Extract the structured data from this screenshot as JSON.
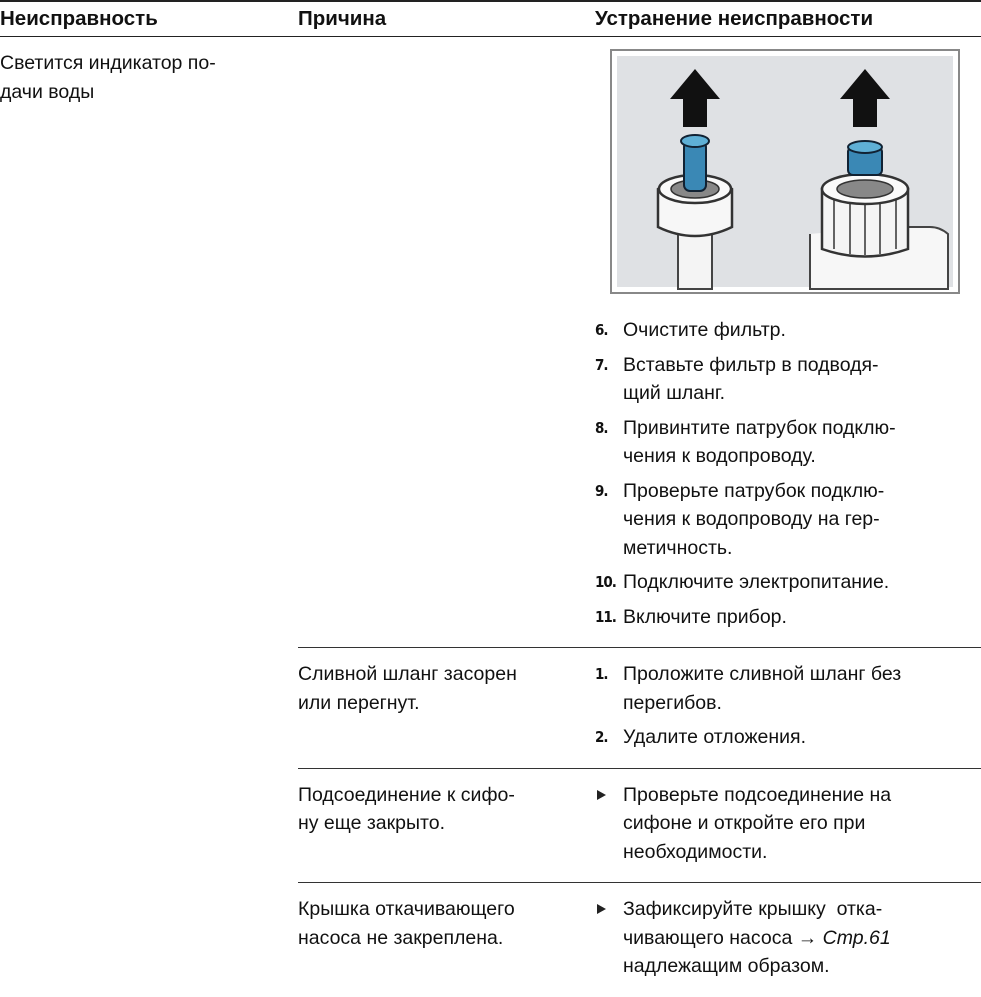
{
  "header": {
    "columns": [
      "Неисправность",
      "Причина",
      "Устранение неисправности"
    ]
  },
  "rows": [
    {
      "fault": [
        "Светится индикатор по-",
        "дачи воды"
      ],
      "steps": [
        {
          "num": "6.",
          "lines": [
            "Очистите фильтр."
          ]
        },
        {
          "num": "7.",
          "lines": [
            "Вставьте фильтр в подводя-",
            "щий шланг."
          ]
        },
        {
          "num": "8.",
          "lines": [
            "Привинтите патрубок подклю-",
            "чения к водопроводу."
          ]
        },
        {
          "num": "9.",
          "lines": [
            "Проверьте патрубок подклю-",
            "чения к водопроводу на гер-",
            "метичность."
          ]
        },
        {
          "num": "10.",
          "lines": [
            "Подключите электропитание."
          ]
        },
        {
          "num": "11.",
          "lines": [
            "Включите прибор."
          ]
        }
      ]
    },
    {
      "cause": [
        "Сливной шланг засорен",
        "или перегнут."
      ],
      "steps": [
        {
          "num": "1.",
          "lines": [
            "Проложите сливной шланг без",
            "перегибов."
          ]
        },
        {
          "num": "2.",
          "lines": [
            "Удалите отложения."
          ]
        }
      ]
    },
    {
      "cause": [
        "Подсоединение к сифо-",
        "ну еще закрыто."
      ],
      "bullets": [
        {
          "lines": [
            "Проверьте подсоединение на",
            "сифоне и откройте его при",
            "необходимости."
          ]
        }
      ]
    },
    {
      "cause": [
        "Крышка откачивающего",
        "насоса не закреплена."
      ],
      "bullets": [
        {
          "lines": [
            "Зафиксируйте крышку  отка-",
            {
              "text": "чивающего насоса →",
              "ref": "Стр.61"
            },
            "надлежащим образом."
          ]
        }
      ]
    }
  ]
}
